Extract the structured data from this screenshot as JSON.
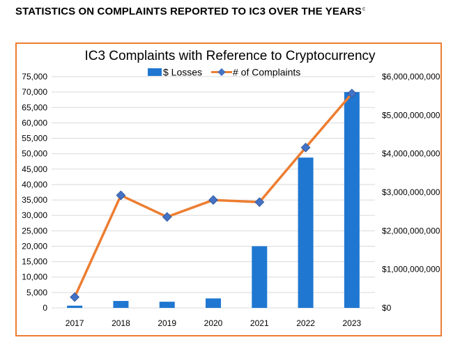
{
  "page": {
    "heading": "STATISTICS ON COMPLAINTS REPORTED TO IC3 OVER THE YEARS",
    "heading_footnote": "c"
  },
  "colors": {
    "bar": "#1F77D1",
    "line": "#ED7D31",
    "marker": "#4472C4",
    "frame": "#ED7D31",
    "grid": "#D9D9D9"
  },
  "chart_data": {
    "type": "bar",
    "title": "IC3 Complaints with Reference to Cryptocurrency",
    "categories": [
      "2017",
      "2018",
      "2019",
      "2020",
      "2021",
      "2022",
      "2023"
    ],
    "series": [
      {
        "name": "$ Losses",
        "type": "bar",
        "axis": "right",
        "values": [
          58000000,
          180000000,
          160000000,
          246000000,
          1600000000,
          3900000000,
          5600000000
        ]
      },
      {
        "name": "# of Complaints",
        "type": "line",
        "axis": "left",
        "values": [
          3500,
          36500,
          29500,
          35000,
          34300,
          52000,
          69500
        ]
      }
    ],
    "y_left": {
      "range": [
        0,
        75000
      ],
      "ticks": [
        0,
        5000,
        10000,
        15000,
        20000,
        25000,
        30000,
        35000,
        40000,
        45000,
        50000,
        55000,
        60000,
        65000,
        70000,
        75000
      ],
      "tick_labels": [
        "0",
        "5,000",
        "10,000",
        "15,000",
        "20,000",
        "25,000",
        "30,000",
        "35,000",
        "40,000",
        "45,000",
        "50,000",
        "55,000",
        "60,000",
        "65,000",
        "70,000",
        "75,000"
      ]
    },
    "y_right": {
      "range": [
        0,
        6000000000
      ],
      "ticks": [
        0,
        1000000000,
        2000000000,
        3000000000,
        4000000000,
        5000000000,
        6000000000
      ],
      "tick_labels": [
        "$0",
        "$1,000,000,000",
        "$2,000,000,000",
        "$3,000,000,000",
        "$4,000,000,000",
        "$5,000,000,000",
        "$6,000,000,000"
      ]
    },
    "grid": true,
    "legend_position": "top"
  }
}
